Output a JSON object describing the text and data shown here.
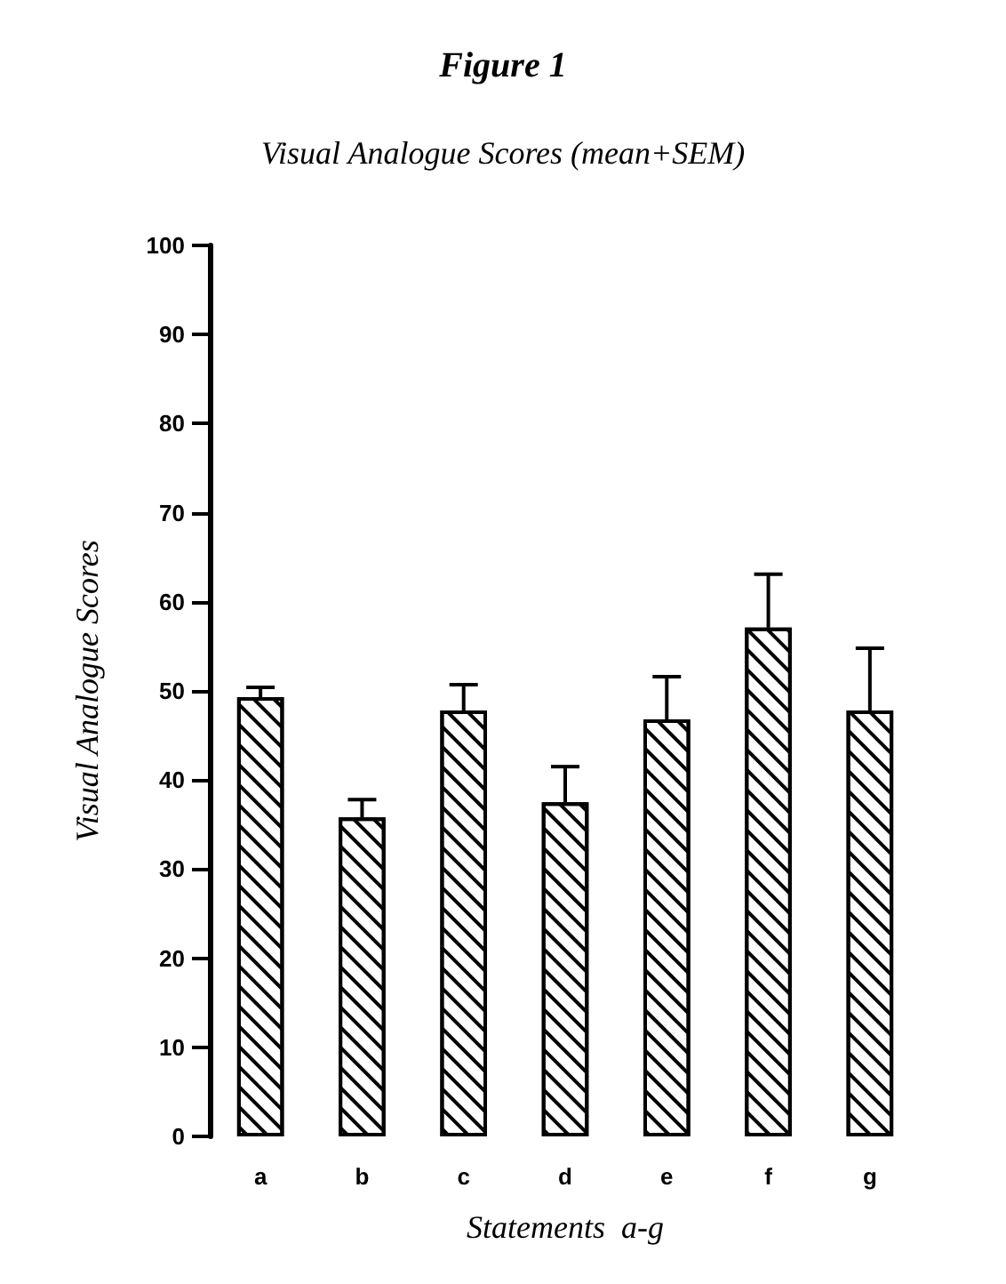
{
  "chart_data": {
    "type": "bar",
    "title": "Figure 1",
    "subtitle": "Visual Analogue Scores (mean+SEM)",
    "xlabel": "Statements  a-g",
    "ylabel": "Visual Analogue Scores",
    "categories": [
      "a",
      "b",
      "c",
      "d",
      "e",
      "f",
      "g"
    ],
    "values": [
      49.3,
      35.8,
      47.8,
      37.5,
      46.8,
      57.1,
      47.8
    ],
    "errors": [
      [
        49.3,
        50.4
      ],
      [
        35.8,
        37.8
      ],
      [
        47.8,
        50.7
      ],
      [
        37.5,
        41.5
      ],
      [
        46.8,
        51.6
      ],
      [
        57.1,
        63.1
      ],
      [
        47.8,
        54.8
      ]
    ],
    "color": "#ffffff",
    "ylim": [
      0,
      100
    ],
    "yticks": [
      0,
      10,
      20,
      30,
      40,
      50,
      60,
      70,
      80,
      90,
      100
    ],
    "grid": false
  }
}
